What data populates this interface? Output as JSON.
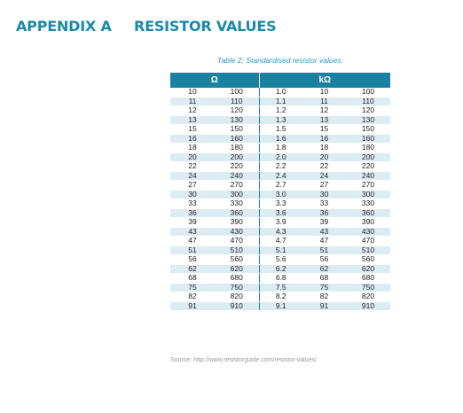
{
  "heading": {
    "appendix": "APPENDIX A",
    "title": "RESISTOR VALUES"
  },
  "table": {
    "caption": "Table 2: Standardised resistor values.",
    "group_headers": [
      "Ω",
      "kΩ"
    ],
    "rows": [
      [
        "10",
        "100",
        "1.0",
        "10",
        "100"
      ],
      [
        "11",
        "110",
        "1.1",
        "11",
        "110"
      ],
      [
        "12",
        "120",
        "1.2",
        "12",
        "120"
      ],
      [
        "13",
        "130",
        "1.3",
        "13",
        "130"
      ],
      [
        "15",
        "150",
        "1.5",
        "15",
        "150"
      ],
      [
        "16",
        "160",
        "1.6",
        "16",
        "160"
      ],
      [
        "18",
        "180",
        "1.8",
        "18",
        "180"
      ],
      [
        "20",
        "200",
        "2.0",
        "20",
        "200"
      ],
      [
        "22",
        "220",
        "2.2",
        "22",
        "220"
      ],
      [
        "24",
        "240",
        "2.4",
        "24",
        "240"
      ],
      [
        "27",
        "270",
        "2.7",
        "27",
        "270"
      ],
      [
        "30",
        "300",
        "3.0",
        "30",
        "300"
      ],
      [
        "33",
        "330",
        "3.3",
        "33",
        "330"
      ],
      [
        "36",
        "360",
        "3.6",
        "36",
        "360"
      ],
      [
        "39",
        "390",
        "3.9",
        "39",
        "390"
      ],
      [
        "43",
        "430",
        "4.3",
        "43",
        "430"
      ],
      [
        "47",
        "470",
        "4.7",
        "47",
        "470"
      ],
      [
        "51",
        "510",
        "5.1",
        "51",
        "510"
      ],
      [
        "56",
        "560",
        "5.6",
        "56",
        "560"
      ],
      [
        "62",
        "620",
        "6.2",
        "62",
        "620"
      ],
      [
        "68",
        "680",
        "6.8",
        "68",
        "680"
      ],
      [
        "75",
        "750",
        "7.5",
        "75",
        "750"
      ],
      [
        "82",
        "820",
        "8.2",
        "82",
        "820"
      ],
      [
        "91",
        "910",
        "9.1",
        "91",
        "910"
      ]
    ],
    "source": "Source: http://www.resistorguide.com/resistor-values/"
  },
  "colors": {
    "accent": "#1a8aa8",
    "header_fill": "#1a82a0",
    "stripe": "#dcecf3",
    "caption": "#2a9bbd",
    "source_text": "#9a9a9a"
  }
}
